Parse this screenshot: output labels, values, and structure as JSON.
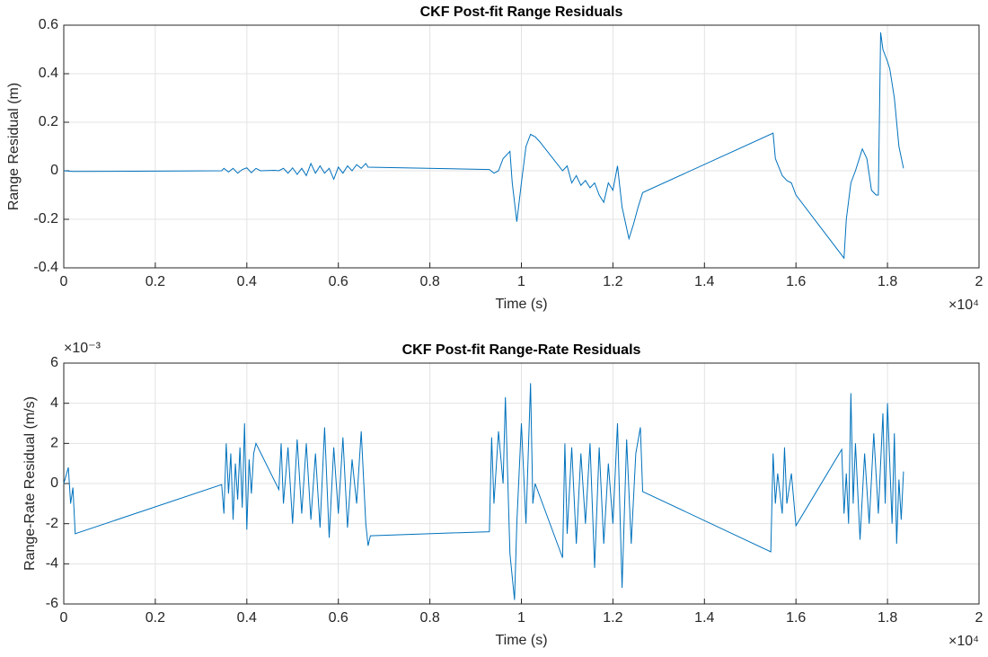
{
  "chart_data": [
    {
      "type": "line",
      "title": "CKF Post-fit Range Residuals",
      "xlabel": "Time (s)",
      "ylabel": "Range Residual (m)",
      "x_multiplier": "×10⁴",
      "color": "#0072bd",
      "grid": true,
      "xlim": [
        0,
        2
      ],
      "xticks": [
        0,
        0.2,
        0.4,
        0.6,
        0.8,
        1,
        1.2,
        1.4,
        1.6,
        1.8,
        2
      ],
      "ylim": [
        -0.4,
        0.6
      ],
      "yticks": [
        -0.4,
        -0.2,
        0,
        0.2,
        0.4,
        0.6
      ],
      "x": [
        0,
        0.02,
        0.345,
        0.35,
        0.36,
        0.37,
        0.38,
        0.39,
        0.4,
        0.41,
        0.42,
        0.43,
        0.46,
        0.47,
        0.48,
        0.49,
        0.5,
        0.51,
        0.52,
        0.53,
        0.54,
        0.55,
        0.56,
        0.57,
        0.58,
        0.59,
        0.6,
        0.61,
        0.62,
        0.63,
        0.64,
        0.65,
        0.66,
        0.665,
        0.93,
        0.94,
        0.95,
        0.96,
        0.975,
        0.98,
        0.99,
        1.0,
        1.01,
        1.02,
        1.03,
        1.04,
        1.09,
        1.1,
        1.11,
        1.12,
        1.13,
        1.14,
        1.15,
        1.16,
        1.17,
        1.18,
        1.19,
        1.2,
        1.21,
        1.22,
        1.235,
        1.245,
        1.255,
        1.265,
        1.55,
        1.555,
        1.57,
        1.58,
        1.59,
        1.6,
        1.705,
        1.71,
        1.72,
        1.73,
        1.745,
        1.755,
        1.765,
        1.775,
        1.78,
        1.785,
        1.79,
        1.8,
        1.805,
        1.815,
        1.825,
        1.835
      ],
      "values": [
        0,
        -0.003,
        0.0,
        0.01,
        -0.005,
        0.01,
        -0.01,
        0.005,
        0.012,
        -0.008,
        0.01,
        0.0,
        0.002,
        0.0,
        0.01,
        -0.01,
        0.012,
        -0.015,
        0.01,
        -0.02,
        0.03,
        -0.01,
        0.02,
        -0.01,
        0.01,
        -0.035,
        0.015,
        -0.01,
        0.02,
        0.0,
        0.025,
        0.01,
        0.03,
        0.015,
        0.005,
        -0.01,
        0.0,
        0.05,
        0.08,
        -0.05,
        -0.21,
        -0.05,
        0.1,
        0.15,
        0.14,
        0.12,
        0.0,
        0.02,
        -0.05,
        -0.02,
        -0.06,
        -0.04,
        -0.07,
        -0.05,
        -0.1,
        -0.13,
        -0.05,
        -0.08,
        0.02,
        -0.15,
        -0.28,
        -0.22,
        -0.15,
        -0.09,
        0.155,
        0.05,
        -0.02,
        -0.04,
        -0.05,
        -0.1,
        -0.36,
        -0.2,
        -0.05,
        0.0,
        0.09,
        0.05,
        -0.08,
        -0.1,
        -0.1,
        0.57,
        0.5,
        0.45,
        0.42,
        0.3,
        0.1,
        0.01
      ]
    },
    {
      "type": "line",
      "title": "CKF Post-fit Range-Rate Residuals",
      "xlabel": "Time (s)",
      "ylabel": "Range-Rate Residual (m/s)",
      "x_multiplier": "×10⁴",
      "y_multiplier": "×10⁻³",
      "color": "#0072bd",
      "grid": true,
      "xlim": [
        0,
        2
      ],
      "xticks": [
        0,
        0.2,
        0.4,
        0.6,
        0.8,
        1,
        1.2,
        1.4,
        1.6,
        1.8,
        2
      ],
      "ylim": [
        -6,
        6
      ],
      "yticks": [
        -6,
        -4,
        -2,
        0,
        2,
        4,
        6
      ],
      "x": [
        0,
        0.01,
        0.015,
        0.02,
        0.025,
        0.345,
        0.35,
        0.355,
        0.36,
        0.365,
        0.37,
        0.375,
        0.38,
        0.385,
        0.39,
        0.395,
        0.4,
        0.405,
        0.41,
        0.415,
        0.42,
        0.47,
        0.475,
        0.48,
        0.49,
        0.5,
        0.51,
        0.52,
        0.53,
        0.54,
        0.55,
        0.56,
        0.57,
        0.58,
        0.59,
        0.6,
        0.61,
        0.62,
        0.63,
        0.64,
        0.65,
        0.66,
        0.665,
        0.67,
        0.93,
        0.935,
        0.94,
        0.95,
        0.96,
        0.965,
        0.975,
        0.985,
        0.99,
        1.0,
        1.01,
        1.02,
        1.025,
        1.03,
        1.09,
        1.095,
        1.1,
        1.11,
        1.12,
        1.13,
        1.14,
        1.15,
        1.16,
        1.17,
        1.18,
        1.19,
        1.2,
        1.21,
        1.22,
        1.23,
        1.24,
        1.25,
        1.26,
        1.265,
        1.545,
        1.55,
        1.555,
        1.56,
        1.57,
        1.575,
        1.58,
        1.59,
        1.6,
        1.7,
        1.705,
        1.71,
        1.715,
        1.72,
        1.725,
        1.73,
        1.74,
        1.75,
        1.76,
        1.77,
        1.78,
        1.79,
        1.795,
        1.8,
        1.81,
        1.815,
        1.82,
        1.825,
        1.83,
        1.835
      ],
      "values": [
        0,
        0.8,
        -1,
        -0.2,
        -2.5,
        -0.05,
        -1.5,
        2,
        -0.5,
        1.5,
        -1.8,
        1,
        -0.8,
        1.8,
        -1.2,
        3,
        -2.3,
        1.2,
        -0.5,
        1.5,
        2,
        -0.3,
        2,
        -1,
        1.8,
        -2,
        2.2,
        -1.5,
        2,
        -1.8,
        1.5,
        -2.2,
        2.8,
        -2.7,
        1.8,
        -1.5,
        2.3,
        -2.2,
        1.2,
        -1,
        2.6,
        -2,
        -3.1,
        -2.6,
        -2.4,
        2.3,
        -1,
        2.6,
        0,
        4.3,
        -3.5,
        -5.8,
        -2,
        3,
        -2,
        5,
        -1,
        0,
        -3.7,
        2,
        -2.5,
        1.8,
        -3,
        1.5,
        -2,
        2,
        -4.2,
        1.8,
        -3,
        1,
        -2,
        3,
        -5.2,
        2.2,
        -3,
        1.5,
        2.8,
        -0.4,
        -3.4,
        1.5,
        -1,
        0.5,
        -1.5,
        1.8,
        -1,
        0.5,
        -2.1,
        1.7,
        -1.5,
        0.5,
        -2,
        4.5,
        -1,
        2,
        -2.8,
        1.5,
        -2,
        2.5,
        -1.5,
        3.5,
        -1,
        4,
        -2,
        2.5,
        -3,
        0.2,
        -1.8,
        0.6
      ]
    }
  ]
}
